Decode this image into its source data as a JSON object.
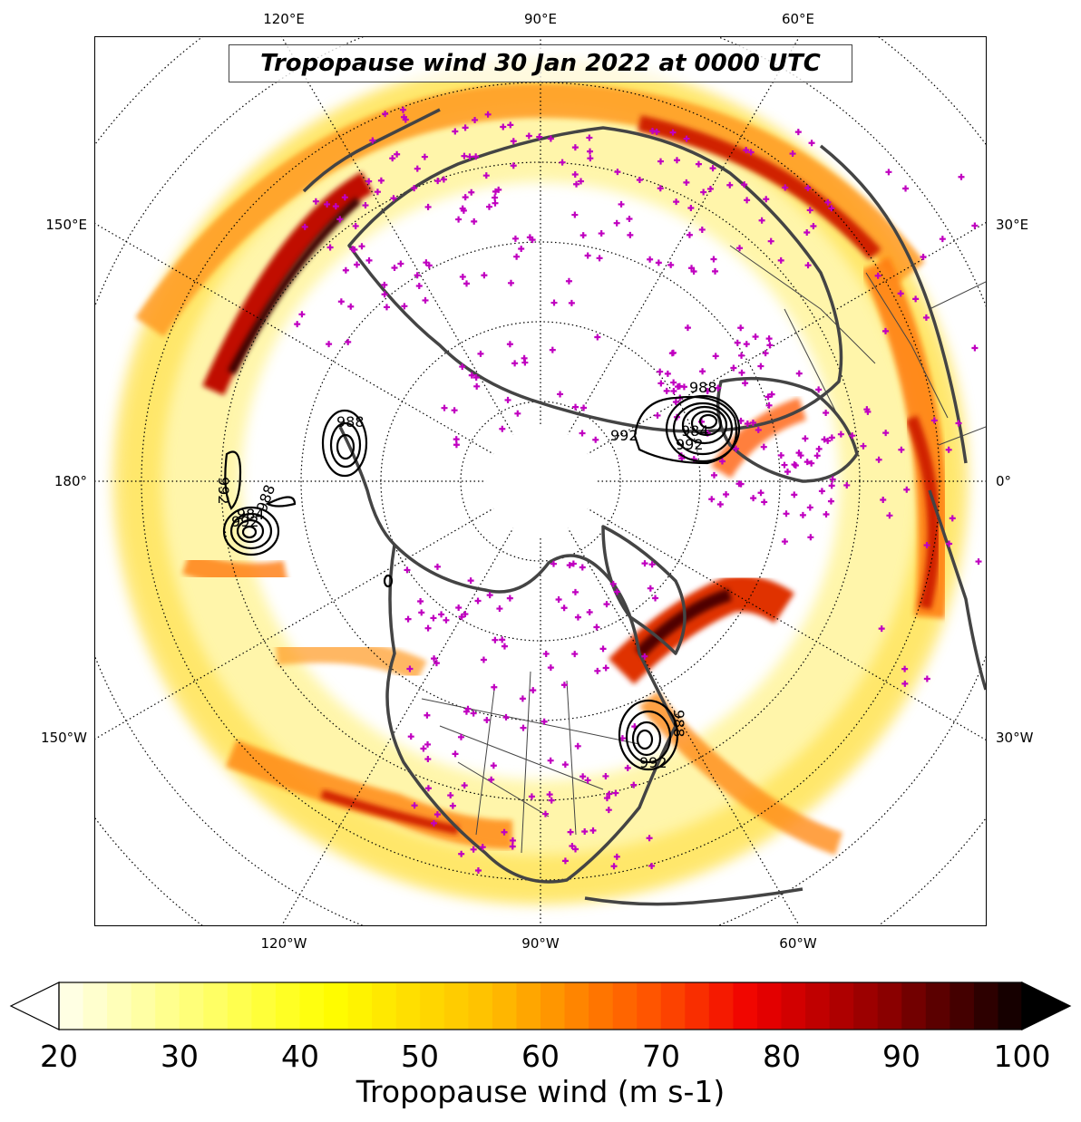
{
  "title": "Tropopause wind 30 Jan 2022 at 0000 UTC",
  "lon_labels": {
    "top": [
      "120°E",
      "90°E",
      "60°E"
    ],
    "bottom": [
      "120°W",
      "90°W",
      "60°W"
    ],
    "left": [
      "150°E",
      "180°",
      "150°W"
    ],
    "right": [
      "30°E",
      "0°",
      "30°W"
    ]
  },
  "contour_labels": [
    "992",
    "988",
    "984",
    "992",
    "988",
    "992",
    "984",
    "988",
    "992",
    "988",
    "992"
  ],
  "colorbar": {
    "label": "Tropopause wind (m s-1)",
    "min": 20,
    "max": 100,
    "step": 2,
    "extend": "both",
    "ticks": [
      "20",
      "30",
      "40",
      "50",
      "60",
      "70",
      "80",
      "90",
      "100"
    ]
  },
  "colors": {
    "station_marker": "#c000c0",
    "coastline": "#444444",
    "contour": "#000000"
  }
}
